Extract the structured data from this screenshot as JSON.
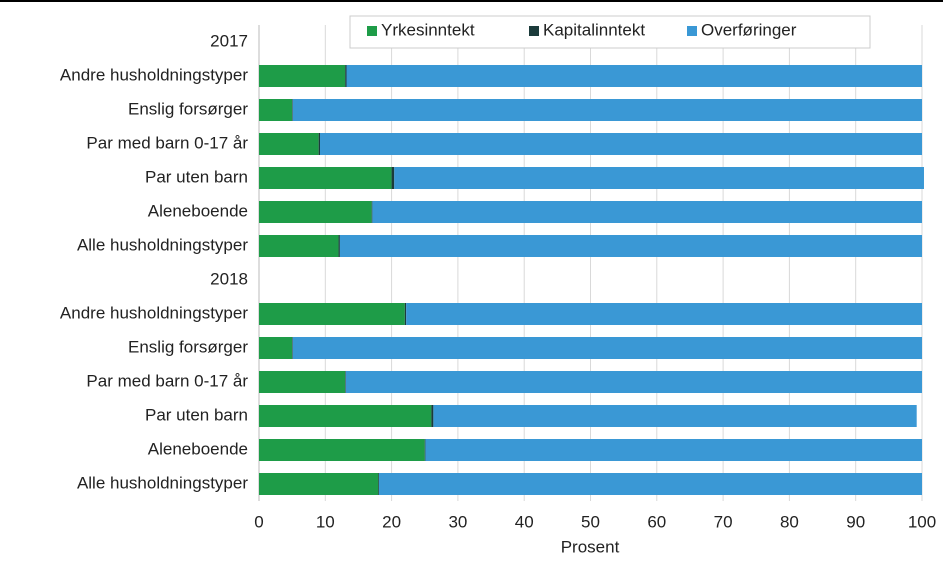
{
  "chart_data": {
    "type": "stacked_barh",
    "categories": [
      "2017",
      "Andre husholdningstyper",
      "Enslig forsørger",
      "Par med barn 0-17 år",
      "Par uten barn",
      "Aleneboende",
      "Alle husholdningstyper",
      "2018",
      "Andre husholdningstyper",
      "Enslig forsørger",
      "Par med barn 0-17 år",
      "Par uten barn",
      "Aleneboende",
      "Alle husholdningstyper"
    ],
    "series": [
      {
        "name": "Yrkesinntekt",
        "color": "#1e9c48",
        "values": [
          null,
          13,
          5,
          9,
          20,
          17,
          12,
          null,
          22,
          5,
          13,
          26,
          25,
          18
        ]
      },
      {
        "name": "Kapitalinntekt",
        "color": "#1b3b3b",
        "values": [
          null,
          0.2,
          0.1,
          0.2,
          0.4,
          0.1,
          0.2,
          null,
          0.2,
          0.1,
          0.1,
          0.3,
          0.1,
          0.1
        ]
      },
      {
        "name": "Overføringer",
        "color": "#3a98d5",
        "values": [
          null,
          86.8,
          94.9,
          90.8,
          79.9,
          82.9,
          87.8,
          null,
          77.8,
          94.9,
          86.9,
          72.9,
          74.9,
          81.9
        ]
      }
    ],
    "xlabel": "Prosent",
    "xlim": [
      0,
      100
    ],
    "xticks": [
      0,
      10,
      20,
      30,
      40,
      50,
      60,
      70,
      80,
      90,
      100
    ],
    "grid": true,
    "legend": "top"
  }
}
